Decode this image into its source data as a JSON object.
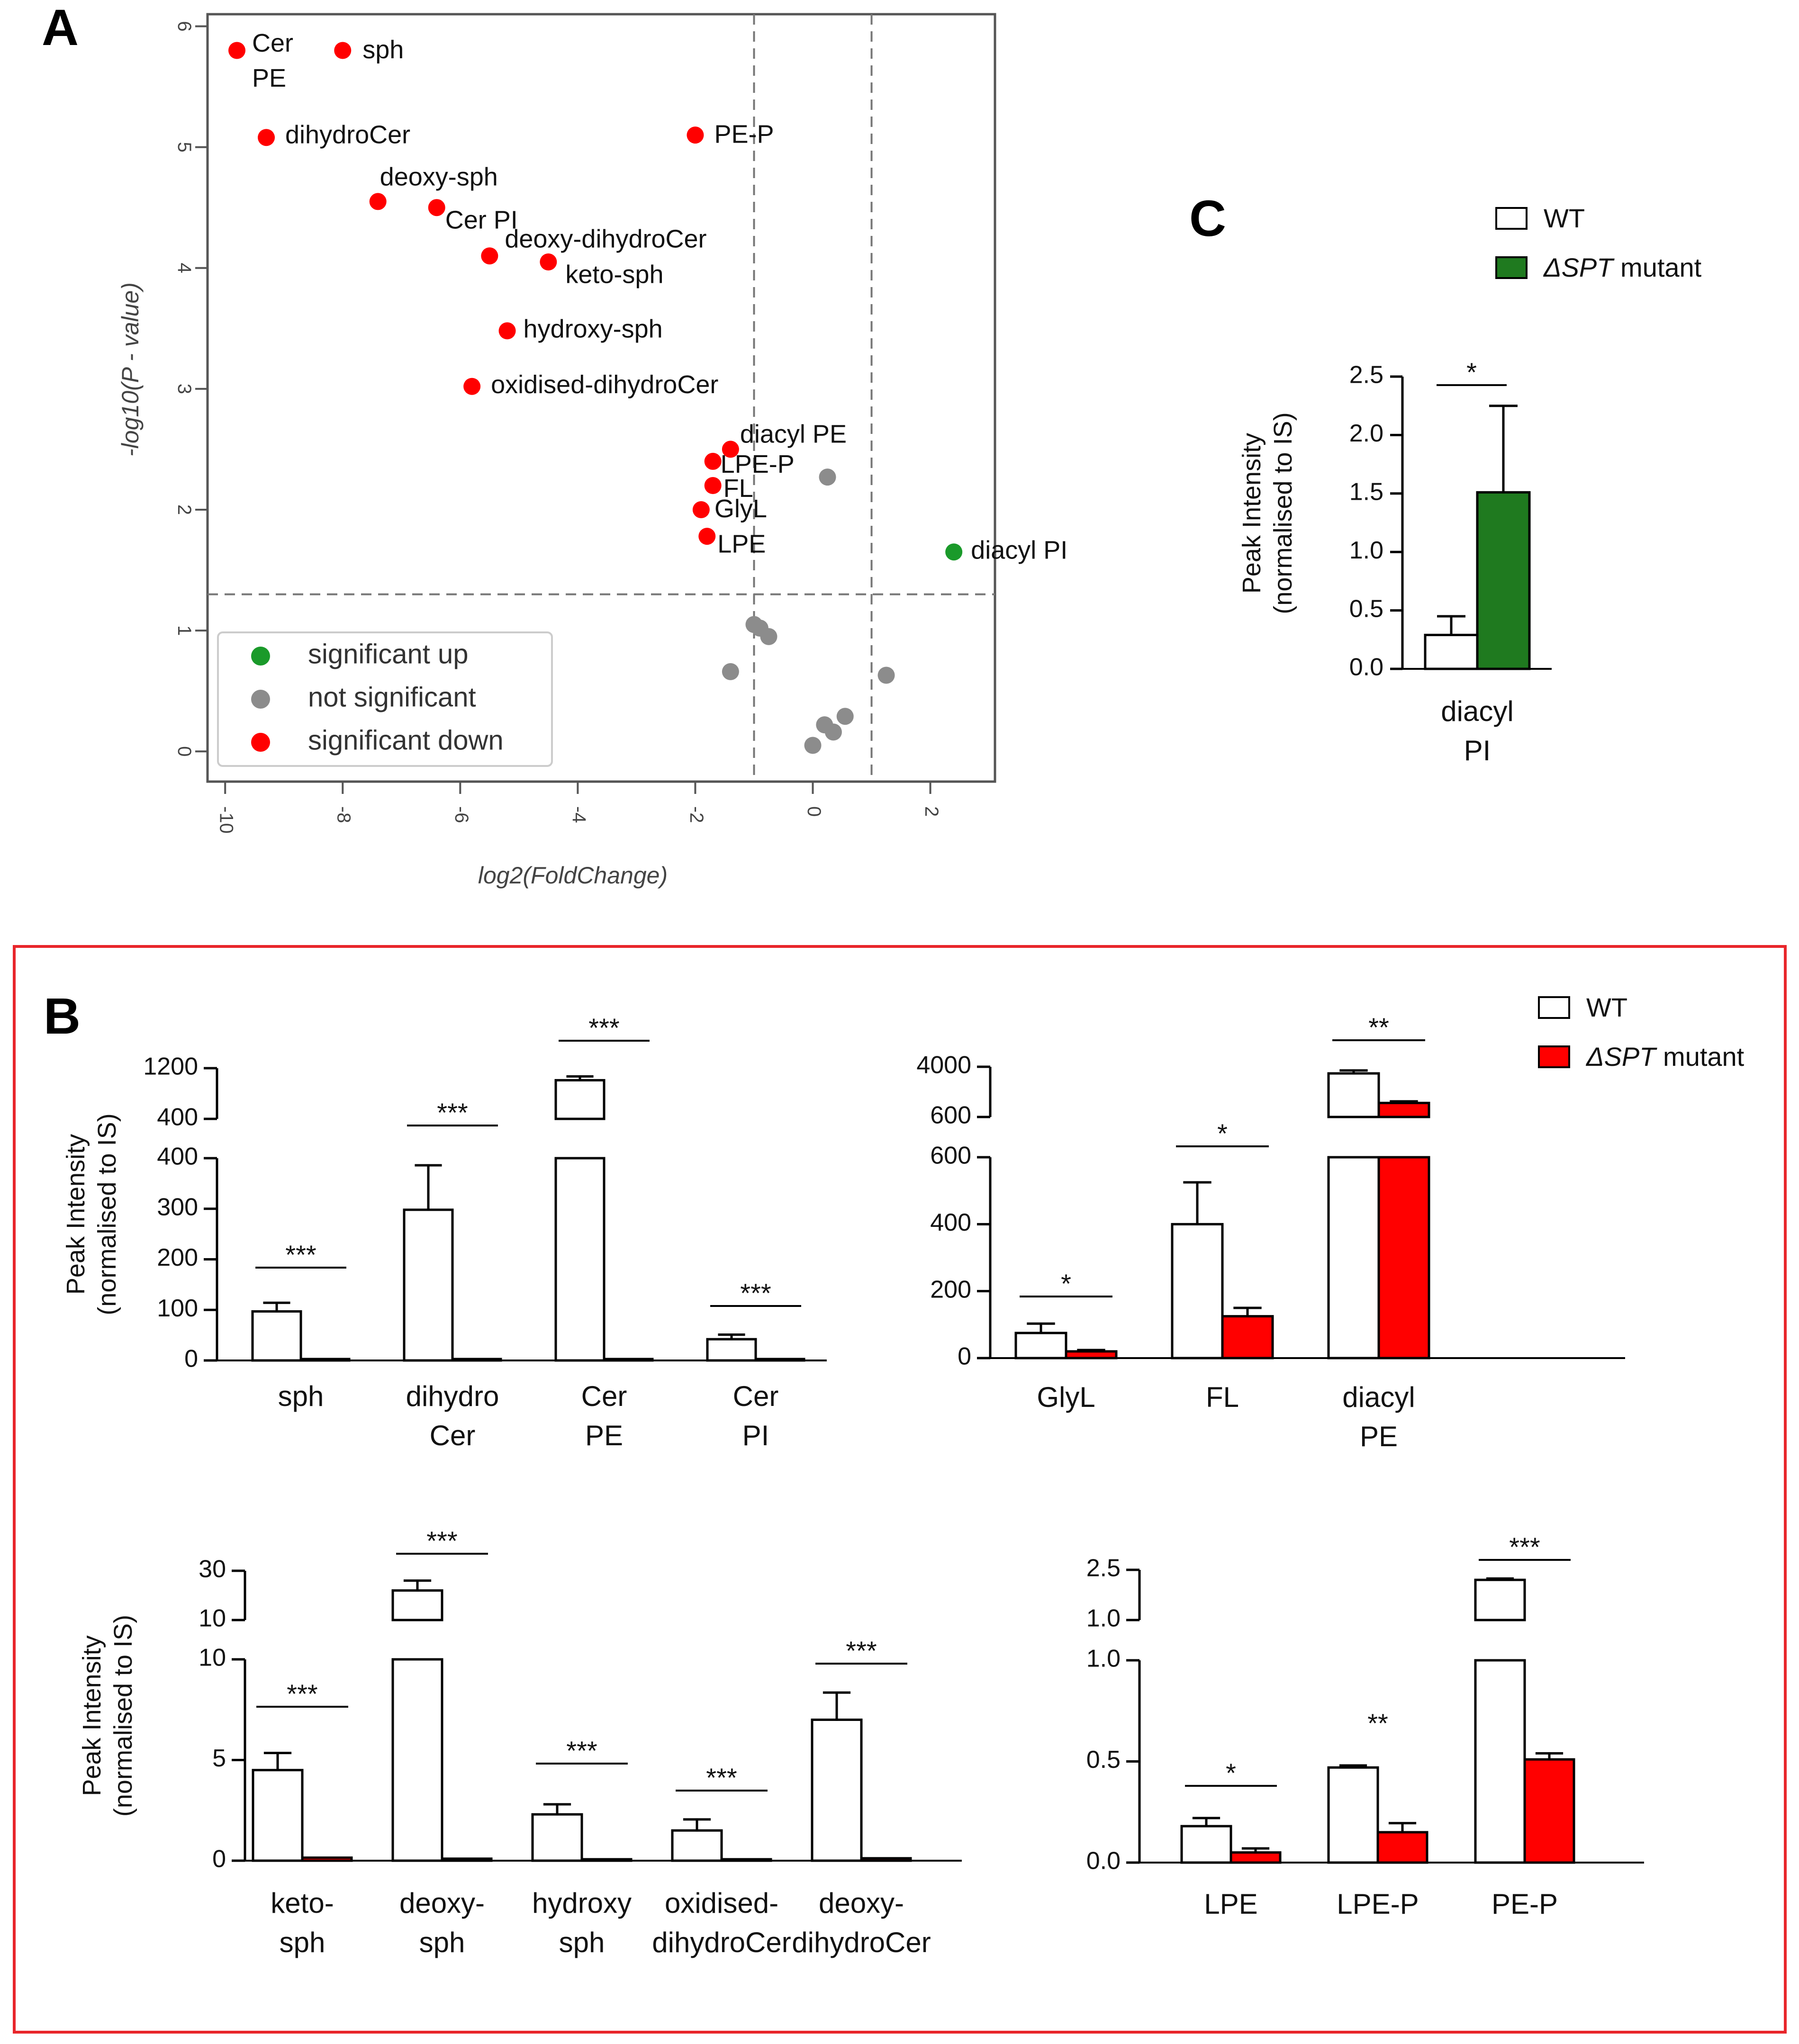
{
  "panel_labels": {
    "a": "A",
    "b": "B",
    "c": "C"
  },
  "colors": {
    "red": "#ff0000",
    "green": "#1f7a1f",
    "grey": "#8c8c8c",
    "dot_green": "#1a9a2a",
    "frame_red": "#e8262b"
  },
  "chart_data": [
    {
      "id": "A",
      "type": "scatter",
      "title": "",
      "xlabel": "log2(FoldChange)",
      "ylabel": "-log10(P - value)",
      "xlim": [
        -10.3,
        3.1
      ],
      "ylim": [
        -0.25,
        6.1
      ],
      "xticks": [
        -10,
        -8,
        -6,
        -4,
        -2,
        0,
        2
      ],
      "xtick_labels": [
        "-10",
        "-8",
        "-6",
        "-4",
        "-2",
        "0",
        "2"
      ],
      "yticks": [
        0,
        1,
        2,
        3,
        4,
        5,
        6
      ],
      "ytick_labels": [
        "0",
        "1",
        "2",
        "3",
        "4",
        "5",
        "6"
      ],
      "thresholds": {
        "x": [
          -1,
          1
        ],
        "y": 1.3
      },
      "legend": {
        "position": "bottom-left",
        "items": [
          {
            "label": "significant up",
            "color": "#1a9a2a"
          },
          {
            "label": "not significant",
            "color": "#8c8c8c"
          },
          {
            "label": "significant down",
            "color": "#ff0000"
          }
        ]
      },
      "points": [
        {
          "x": -9.8,
          "y": 5.8,
          "group": "down",
          "label": "Cer",
          "label2": "PE"
        },
        {
          "x": -8.0,
          "y": 5.8,
          "group": "down",
          "label": "sph"
        },
        {
          "x": -9.3,
          "y": 5.08,
          "group": "down",
          "label": "dihydroCer"
        },
        {
          "x": -2.0,
          "y": 5.1,
          "group": "down",
          "label": "PE-P"
        },
        {
          "x": -7.4,
          "y": 4.55,
          "group": "down",
          "label": "deoxy-sph"
        },
        {
          "x": -6.4,
          "y": 4.5,
          "group": "down",
          "label": "Cer PI"
        },
        {
          "x": -5.5,
          "y": 4.1,
          "group": "down",
          "label": "deoxy-dihydroCer"
        },
        {
          "x": -4.5,
          "y": 4.05,
          "group": "down",
          "label": "keto-sph"
        },
        {
          "x": -5.2,
          "y": 3.48,
          "group": "down",
          "label": "hydroxy-sph"
        },
        {
          "x": -5.8,
          "y": 3.02,
          "group": "down",
          "label": "oxidised-dihydroCer"
        },
        {
          "x": -1.4,
          "y": 2.5,
          "group": "down",
          "label": "diacyl PE"
        },
        {
          "x": -1.7,
          "y": 2.4,
          "group": "down",
          "label": "LPE-P"
        },
        {
          "x": -1.7,
          "y": 2.2,
          "group": "down",
          "label": "FL"
        },
        {
          "x": -1.9,
          "y": 2.0,
          "group": "down",
          "label": "GlyL"
        },
        {
          "x": -1.8,
          "y": 1.78,
          "group": "down",
          "label": "LPE"
        },
        {
          "x": 2.4,
          "y": 1.65,
          "group": "up",
          "label": "diacyl PI"
        },
        {
          "x": 0.25,
          "y": 2.27,
          "group": "ns",
          "label": ""
        },
        {
          "x": -1.0,
          "y": 1.05,
          "group": "ns",
          "label": ""
        },
        {
          "x": -0.9,
          "y": 1.02,
          "group": "ns",
          "label": ""
        },
        {
          "x": -0.75,
          "y": 0.95,
          "group": "ns",
          "label": ""
        },
        {
          "x": -1.4,
          "y": 0.66,
          "group": "ns",
          "label": ""
        },
        {
          "x": 1.25,
          "y": 0.63,
          "group": "ns",
          "label": ""
        },
        {
          "x": 0.55,
          "y": 0.29,
          "group": "ns",
          "label": ""
        },
        {
          "x": 0.2,
          "y": 0.22,
          "group": "ns",
          "label": ""
        },
        {
          "x": 0.35,
          "y": 0.16,
          "group": "ns",
          "label": ""
        },
        {
          "x": 0.0,
          "y": 0.05,
          "group": "ns",
          "label": ""
        }
      ]
    },
    {
      "id": "C",
      "type": "bar",
      "title": "",
      "ylabel": "Peak Intensity",
      "ylabel2": "(normalised to IS)",
      "ylim": [
        0,
        2.5
      ],
      "yticks": [
        0,
        0.5,
        1.0,
        1.5,
        2.0,
        2.5
      ],
      "ytick_labels": [
        "0.0",
        "0.5",
        "1.0",
        "1.5",
        "2.0",
        "2.5"
      ],
      "categories": [
        [
          "diacyl",
          "PI"
        ]
      ],
      "series": [
        {
          "name": "WT",
          "values": [
            0.29
          ],
          "errors": [
            0.16
          ]
        },
        {
          "name": "ΔSPT mutant",
          "values": [
            1.51
          ],
          "errors": [
            0.74
          ]
        }
      ],
      "significance": [
        "*"
      ],
      "legend": {
        "position": "top",
        "items": [
          {
            "italic": "",
            "plain": "WT"
          },
          {
            "italic": "ΔSPT",
            "plain": " mutant"
          }
        ]
      }
    },
    {
      "id": "B1",
      "type": "bar",
      "broken_axis": true,
      "ylabel": "Peak Intensity",
      "ylabel2": "(normalised to IS)",
      "lower_ylim": [
        0,
        400
      ],
      "lower_ticks": [
        0,
        100,
        200,
        300,
        400
      ],
      "lower_tick_labels": [
        "0",
        "100",
        "200",
        "300",
        "400"
      ],
      "upper_ylim": [
        400,
        1200
      ],
      "upper_tick_labels": [
        "400",
        "1200"
      ],
      "categories": [
        [
          "sph"
        ],
        [
          "dihydro",
          "Cer"
        ],
        [
          "Cer",
          "PE"
        ],
        [
          "Cer",
          "PI"
        ]
      ],
      "series": [
        {
          "name": "WT",
          "values": [
            97,
            298,
            1010,
            42
          ],
          "errors": [
            17,
            88,
            60,
            9
          ]
        },
        {
          "name": "ΔSPT mutant",
          "values": [
            0.5,
            0.5,
            2,
            0.5
          ],
          "errors": [
            0,
            0,
            0,
            0
          ]
        }
      ],
      "significance": [
        "***",
        "***",
        "***",
        "***"
      ]
    },
    {
      "id": "B2",
      "type": "bar",
      "broken_axis": true,
      "lower_ylim": [
        0,
        600
      ],
      "lower_ticks": [
        0,
        200,
        400,
        600
      ],
      "lower_tick_labels": [
        "0",
        "200",
        "400",
        "600"
      ],
      "upper_ylim": [
        600,
        4000
      ],
      "upper_tick_labels": [
        "600",
        "4000"
      ],
      "categories": [
        [
          "GlyL"
        ],
        [
          "FL"
        ],
        [
          "diacyl",
          "PE"
        ]
      ],
      "series": [
        {
          "name": "WT",
          "values": [
            75,
            400,
            3550
          ],
          "errors": [
            28,
            125,
            200
          ]
        },
        {
          "name": "ΔSPT mutant",
          "values": [
            20,
            125,
            1550
          ],
          "errors": [
            4,
            25,
            110
          ]
        }
      ],
      "significance": [
        "*",
        "*",
        "**"
      ],
      "legend": {
        "position": "top-right",
        "items": [
          {
            "italic": "",
            "plain": "WT"
          },
          {
            "italic": "ΔSPT",
            "plain": " mutant"
          }
        ]
      }
    },
    {
      "id": "B3",
      "type": "bar",
      "broken_axis": true,
      "ylabel": "Peak Intensity",
      "ylabel2": "(normalised to IS)",
      "lower_ylim": [
        0,
        10
      ],
      "lower_ticks": [
        0,
        5,
        10
      ],
      "lower_tick_labels": [
        "0",
        "5",
        "10"
      ],
      "upper_ylim": [
        10,
        30
      ],
      "upper_tick_labels": [
        "10",
        "30"
      ],
      "categories": [
        [
          "keto-",
          "sph"
        ],
        [
          "deoxy-",
          "sph"
        ],
        [
          "hydroxy",
          "sph"
        ],
        [
          "oxidised-",
          "dihydroCer"
        ],
        [
          "deoxy-",
          "dihydroCer"
        ]
      ],
      "series": [
        {
          "name": "WT",
          "values": [
            4.5,
            22,
            2.3,
            1.5,
            7.0
          ],
          "errors": [
            0.85,
            4,
            0.5,
            0.55,
            1.35
          ]
        },
        {
          "name": "ΔSPT mutant",
          "values": [
            0.15,
            0.1,
            0.05,
            0.0,
            0.12
          ],
          "errors": [
            0,
            0,
            0,
            0,
            0
          ]
        }
      ],
      "significance": [
        "***",
        "***",
        "***",
        "***",
        "***"
      ]
    },
    {
      "id": "B4",
      "type": "bar",
      "broken_axis": true,
      "lower_ylim": [
        0,
        1.0
      ],
      "lower_ticks": [
        0,
        0.5,
        1.0
      ],
      "lower_tick_labels": [
        "0.0",
        "0.5",
        "1.0"
      ],
      "upper_ylim": [
        1.0,
        2.5
      ],
      "upper_tick_labels": [
        "1.0",
        "2.5"
      ],
      "categories": [
        [
          "LPE"
        ],
        [
          "LPE-P"
        ],
        [
          "PE-P"
        ]
      ],
      "series": [
        {
          "name": "WT",
          "values": [
            0.18,
            0.47,
            2.2
          ],
          "errors": [
            0.04,
            0.01,
            0.04
          ]
        },
        {
          "name": "ΔSPT mutant",
          "values": [
            0.05,
            0.15,
            0.51
          ],
          "errors": [
            0.02,
            0.045,
            0.03
          ]
        }
      ],
      "significance": [
        "*",
        "**",
        "***"
      ]
    }
  ]
}
